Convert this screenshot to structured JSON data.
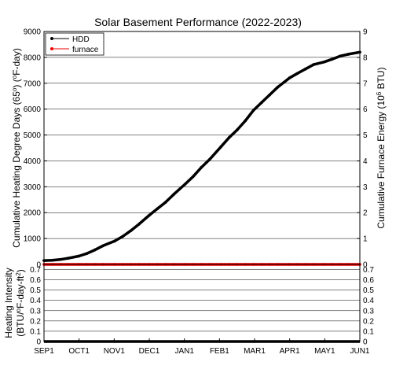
{
  "chart_data": [
    {
      "type": "line",
      "title": "Solar Basement Performance (2022-2023)",
      "ylabel": "Cumulative Heating Degree Days (65°) (°F-day)",
      "ylabel_parts": [
        "Cumulative Heating Degree Days (65",
        "o",
        ") (",
        "o",
        "F-day)"
      ],
      "y2label": "Cumulative Furnace Energy (10⁶ BTU)",
      "y2label_parts": [
        "Cumulative Furnace Energy (10",
        "6",
        " BTU)"
      ],
      "ylim": [
        0,
        9000
      ],
      "y2lim": [
        0,
        9
      ],
      "yticks": [
        "0",
        "1000",
        "2000",
        "3000",
        "4000",
        "5000",
        "6000",
        "7000",
        "8000",
        "9000"
      ],
      "y2ticks": [
        "0",
        "1",
        "2",
        "3",
        "4",
        "5",
        "6",
        "7",
        "8",
        "9"
      ],
      "grid": true,
      "legend_placement": "top-left",
      "x": [
        "2022-09-01",
        "2022-09-08",
        "2022-09-15",
        "2022-09-22",
        "2022-10-01",
        "2022-10-08",
        "2022-10-15",
        "2022-10-22",
        "2022-11-01",
        "2022-11-08",
        "2022-11-15",
        "2022-11-22",
        "2022-12-01",
        "2022-12-08",
        "2022-12-15",
        "2022-12-22",
        "2023-01-01",
        "2023-01-08",
        "2023-01-15",
        "2023-01-22",
        "2023-02-01",
        "2023-02-08",
        "2023-02-15",
        "2023-02-22",
        "2023-03-01",
        "2023-03-08",
        "2023-03-15",
        "2023-03-22",
        "2023-04-01",
        "2023-04-08",
        "2023-04-15",
        "2023-04-22",
        "2023-05-01",
        "2023-05-08",
        "2023-05-15",
        "2023-05-22",
        "2023-06-01"
      ],
      "series": [
        {
          "name": "HDD",
          "axis": "left",
          "color": "#000000",
          "values": [
            150,
            160,
            190,
            240,
            320,
            420,
            560,
            720,
            900,
            1080,
            1300,
            1550,
            1900,
            2150,
            2400,
            2700,
            3100,
            3400,
            3750,
            4050,
            4550,
            4900,
            5200,
            5550,
            5950,
            6250,
            6550,
            6850,
            7200,
            7380,
            7550,
            7720,
            7820,
            7930,
            8050,
            8120,
            8200
          ]
        },
        {
          "name": "furnace",
          "axis": "right",
          "color": "#ee0000",
          "values": [
            0,
            0,
            0,
            0,
            0,
            0,
            0,
            0,
            0,
            0,
            0,
            0,
            0,
            0,
            0,
            0,
            0,
            0,
            0,
            0,
            0,
            0,
            0,
            0,
            0,
            0,
            0,
            0,
            0,
            0,
            0,
            0,
            0,
            0,
            0,
            0,
            0
          ]
        }
      ]
    },
    {
      "type": "line",
      "ylabel": "Heating Intensity (BTU/°F-day-ft²)",
      "ylabel_line1": "Heating Intensity",
      "ylabel_parts": [
        "(BTU/",
        "o",
        "F-day-ft",
        "2",
        ")"
      ],
      "ylim": [
        0,
        0.75
      ],
      "yticks": [
        "0",
        "0.1",
        "0.2",
        "0.3",
        "0.4",
        "0.5",
        "0.6",
        "0.7"
      ],
      "y2ticks": [
        "0",
        "0.1",
        "0.2",
        "0.3",
        "0.4",
        "0.5",
        "0.6",
        "0.7"
      ],
      "xticks": [
        "SEP1",
        "OCT1",
        "NOV1",
        "DEC1",
        "JAN1",
        "FEB1",
        "MAR1",
        "APR1",
        "MAY1",
        "JUN1"
      ],
      "grid": true,
      "x": [
        "2022-09-01",
        "2023-06-01"
      ],
      "series": [
        {
          "color": "#000000",
          "values": [
            0,
            0
          ]
        }
      ]
    }
  ]
}
